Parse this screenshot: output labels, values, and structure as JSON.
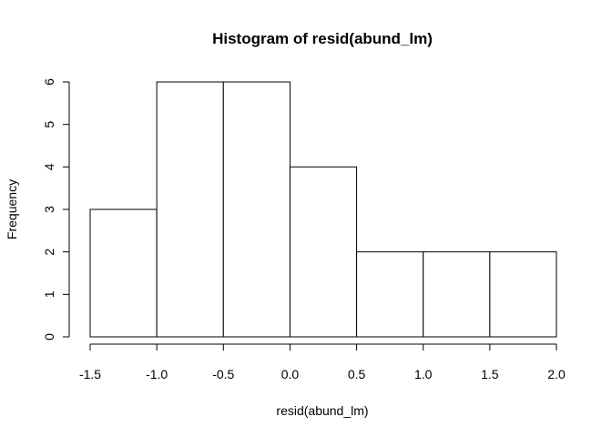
{
  "chart_data": {
    "type": "bar",
    "subtype": "histogram",
    "title": "Histogram of resid(abund_lm)",
    "xlabel": "resid(abund_lm)",
    "ylabel": "Frequency",
    "bins": [
      {
        "from": -1.5,
        "to": -1.0,
        "count": 3
      },
      {
        "from": -1.0,
        "to": -0.5,
        "count": 6
      },
      {
        "from": -0.5,
        "to": 0.0,
        "count": 6
      },
      {
        "from": 0.0,
        "to": 0.5,
        "count": 4
      },
      {
        "from": 0.5,
        "to": 1.0,
        "count": 2
      },
      {
        "from": 1.0,
        "to": 1.5,
        "count": 2
      },
      {
        "from": 1.5,
        "to": 2.0,
        "count": 2
      }
    ],
    "xlim": [
      -1.5,
      2.0
    ],
    "ylim": [
      0,
      6
    ],
    "x_ticks": [
      -1.5,
      -1.0,
      -0.5,
      0.0,
      0.5,
      1.0,
      1.5,
      2.0
    ],
    "x_tick_labels": [
      "-1.5",
      "-1.0",
      "-0.5",
      "0.0",
      "0.5",
      "1.0",
      "1.5",
      "2.0"
    ],
    "y_ticks": [
      0,
      1,
      2,
      3,
      4,
      5,
      6
    ],
    "y_tick_labels": [
      "0",
      "1",
      "2",
      "3",
      "4",
      "5",
      "6"
    ],
    "grid": false,
    "colors": {
      "bar_fill": "#ffffff",
      "bar_stroke": "#000000",
      "background": "#ffffff"
    }
  }
}
